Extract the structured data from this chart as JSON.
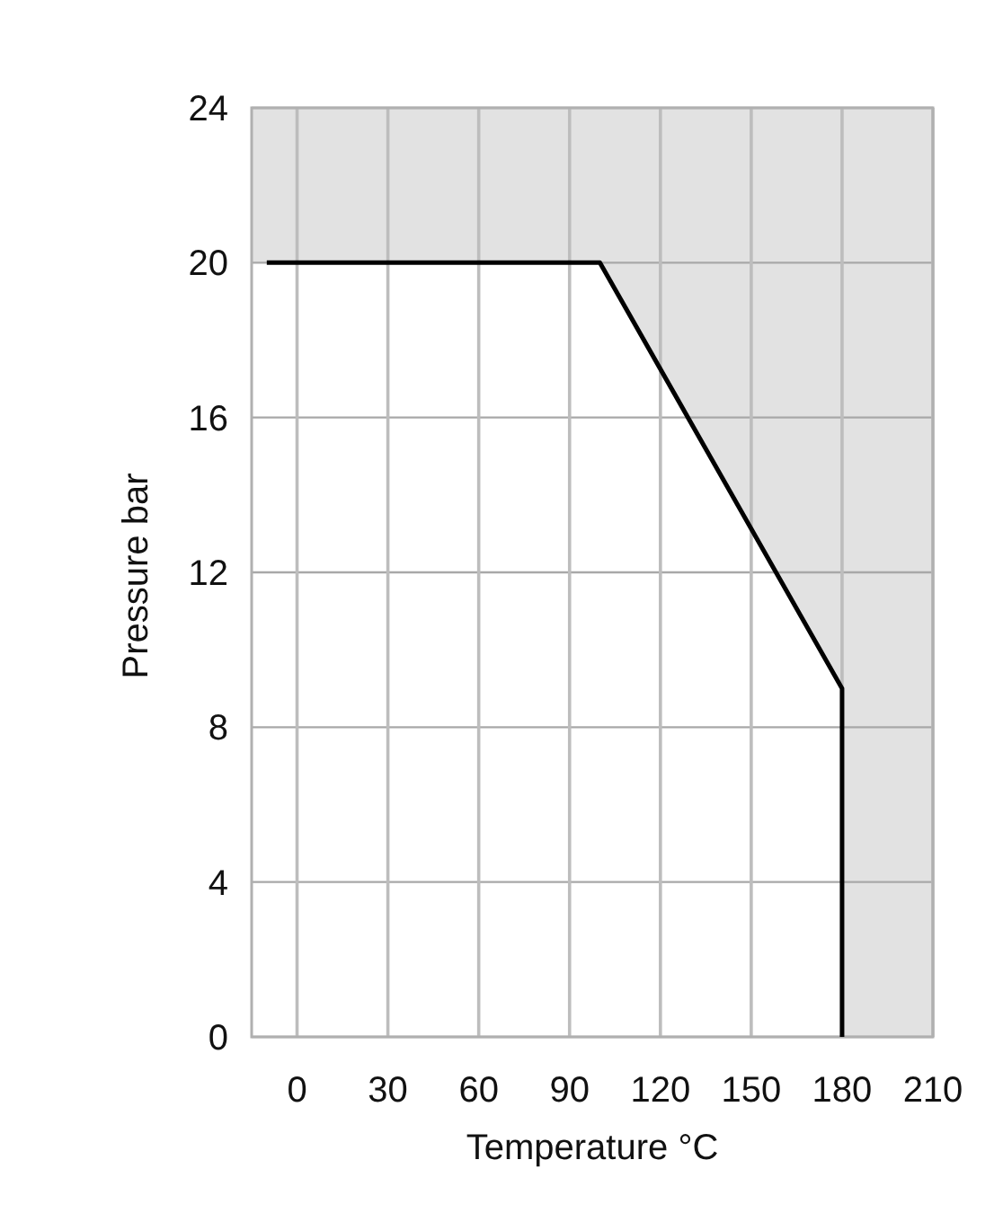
{
  "chart_data": {
    "type": "line",
    "xlabel": "Temperature °C",
    "ylabel": "Pressure bar",
    "xlim": [
      -15,
      210
    ],
    "ylim": [
      0,
      24
    ],
    "xticks": [
      0,
      30,
      60,
      90,
      120,
      150,
      180,
      210
    ],
    "yticks": [
      0,
      4,
      8,
      12,
      16,
      20,
      24
    ],
    "grid": true,
    "series": [
      {
        "color": "#000000",
        "x": [
          -10,
          100,
          180,
          180
        ],
        "values": [
          20,
          20,
          9,
          0
        ],
        "lower": [
          20,
          20,
          9,
          0
        ],
        "upper": [
          20,
          20,
          20,
          20
        ]
      }
    ],
    "bands": [
      {
        "axis": "y",
        "from": 20,
        "to": 24,
        "color": "#e2e2e2"
      },
      {
        "axis": "x",
        "from": 180,
        "to": 210,
        "color": "#e2e2e2"
      }
    ]
  }
}
